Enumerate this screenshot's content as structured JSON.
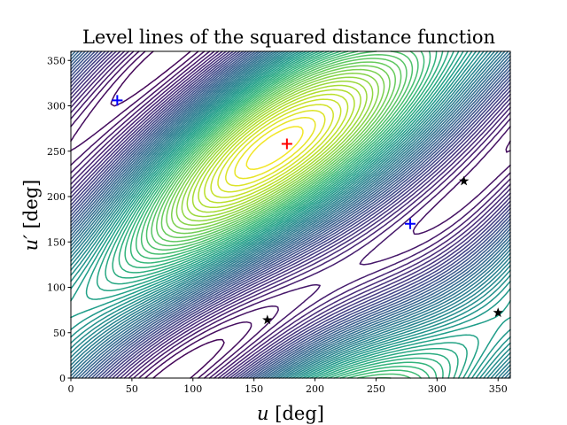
{
  "chart_data": {
    "type": "contour",
    "title": "Level lines of the squared distance function",
    "xlabel": "u [deg]",
    "ylabel": "u′ [deg]",
    "xlabel_var": "u",
    "xlabel_unit": " [deg]",
    "ylabel_var": "u′",
    "ylabel_unit": " [deg]",
    "xlim": [
      0,
      360
    ],
    "ylim": [
      0,
      360
    ],
    "xticks": [
      0,
      50,
      100,
      150,
      200,
      250,
      300,
      350
    ],
    "yticks": [
      0,
      50,
      100,
      150,
      200,
      250,
      300,
      350
    ],
    "colormap": "viridis",
    "grid": false,
    "markers": [
      {
        "kind": "plus",
        "color": "#0000ff",
        "x": 38,
        "y": 306
      },
      {
        "kind": "plus",
        "color": "#0000ff",
        "x": 278,
        "y": 170
      },
      {
        "kind": "plus",
        "color": "#ff0000",
        "x": 177,
        "y": 258
      },
      {
        "kind": "star",
        "color": "#000000",
        "x": 161,
        "y": 64
      },
      {
        "kind": "star",
        "color": "#000000",
        "x": 322,
        "y": 217
      },
      {
        "kind": "star",
        "color": "#000000",
        "x": 350,
        "y": 72
      }
    ]
  }
}
